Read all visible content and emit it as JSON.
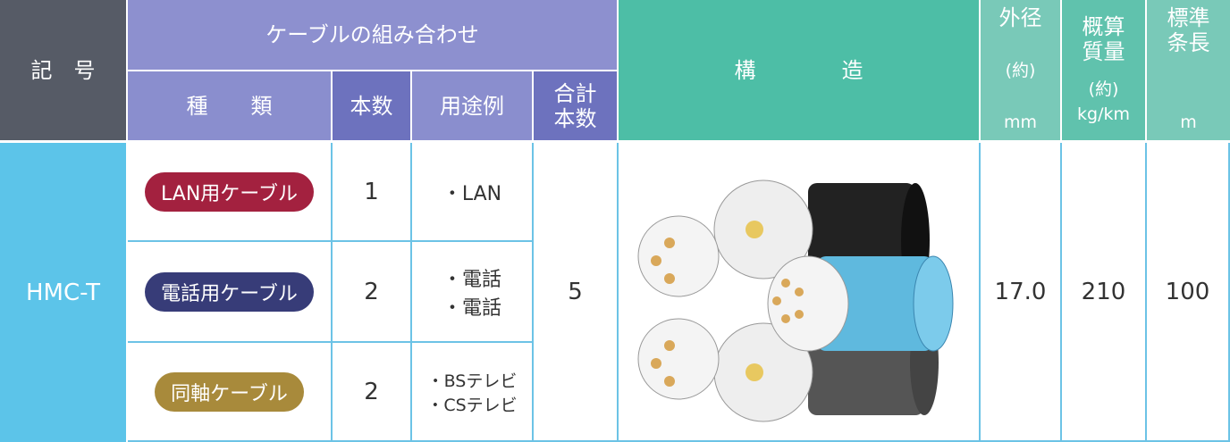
{
  "header": {
    "symbol": "記　号",
    "combination": "ケーブルの組み合わせ",
    "type": "種　　類",
    "count": "本数",
    "usage": "用途例",
    "total": [
      "合計",
      "本数"
    ],
    "structure": "構　　　　造",
    "diameter": {
      "title": "外径",
      "note": "(約)",
      "unit": "mm"
    },
    "mass": {
      "title": [
        "概算",
        "質量"
      ],
      "note": "(約)",
      "unit": "kg/km"
    },
    "length": {
      "title": [
        "標準",
        "条長"
      ],
      "unit": "m"
    }
  },
  "table": {
    "symbol": "HMC-T",
    "rows": [
      {
        "type": "LAN用ケーブル",
        "count": "1",
        "usage": [
          "・LAN"
        ]
      },
      {
        "type": "電話用ケーブル",
        "count": "2",
        "usage": [
          "・電話",
          "・電話"
        ]
      },
      {
        "type": "同軸ケーブル",
        "count": "2",
        "usage": [
          "・BSテレビ",
          "・CSテレビ"
        ]
      }
    ],
    "total": "5",
    "diameter": "17.0",
    "mass": "210",
    "length": "100"
  }
}
